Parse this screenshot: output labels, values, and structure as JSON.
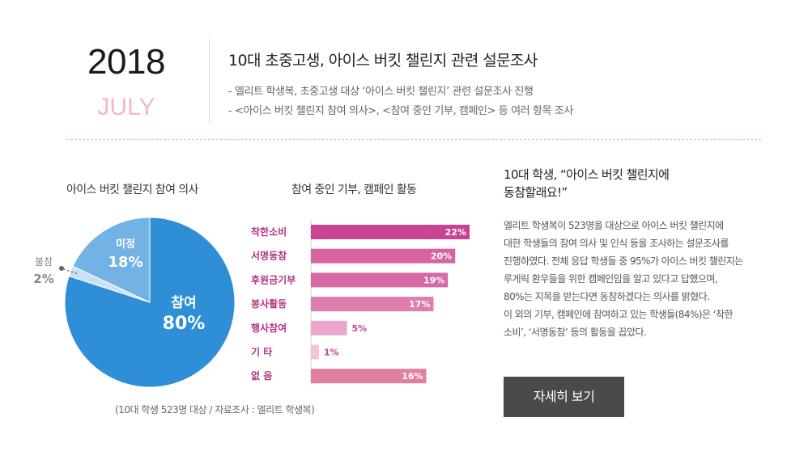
{
  "header": {
    "year": "2018",
    "month": "JULY",
    "title": "10대 초중고생, 아이스 버킷 챌린지 관련 설문조사",
    "descriptions": [
      "- 엘리트 학생복, 초중고생 대상 ‘아이스 버킷 챌린지’ 관련 설문조사 진행",
      "- <아이스 버킷 챌린지 참여 의사>, <참여 중인 기부, 캠페인> 등 여러 항목 조사"
    ]
  },
  "chart_data": [
    {
      "type": "pie",
      "title": "아이스 버킷 챌린지 참여 의사",
      "slices": [
        {
          "label": "참여",
          "value": 80,
          "display": "80%",
          "color": "#2f8fd6"
        },
        {
          "label": "불참",
          "value": 2,
          "display": "2%",
          "color": "#c9e1f5"
        },
        {
          "label": "미정",
          "value": 18,
          "display": "18%",
          "color": "#72b2e4"
        }
      ]
    },
    {
      "type": "bar",
      "orientation": "horizontal",
      "title": "참여 중인 기부, 캠페인 활동",
      "categories": [
        "착한소비",
        "서명동참",
        "후원금기부",
        "봉사활동",
        "행사참여",
        "기      타",
        "없      음"
      ],
      "values": [
        22,
        20,
        19,
        17,
        5,
        1,
        16
      ],
      "value_labels": [
        "22%",
        "20%",
        "19%",
        "17%",
        "5%",
        "1%",
        "16%"
      ],
      "colors": [
        "#c94392",
        "#d7649f",
        "#d66aa5",
        "#dd7eaf",
        "#eaa6cb",
        "#f2c4dc",
        "#e07f9e"
      ],
      "label_colors": [
        "#b3337f",
        "#b3337f",
        "#b3337f",
        "#b3337f",
        "#b3337f",
        "#b3337f",
        "#b3337f"
      ]
    }
  ],
  "source": "(10대 학생 523명 대상 / 자료조사 : 엘리트 학생복)",
  "side": {
    "headline_line1": "10대 학생, “아이스 버킷 챌린지에",
    "headline_line2": "동참할래요!”",
    "body": [
      "엘리트 학생복이 523명을 대상으로 아이스 버킷 챌린지에",
      "대한 학생들의 참여 의사 및 인식 등을 조사하는 설문조사를",
      "진행하였다. 전체 응답 학생들 중 95%가 아이스 버킷 챌린지는",
      "루게릭 환우들을 위한 캠페인임을 알고 있다고 답했으며,",
      "80%는 지목을 받는다면 동참하겠다는 의사를 밝혔다.",
      "이 외의 기부, 캠페인에 참여하고 있는 학생들(84%)은 ‘착한",
      "소비’, ‘서명동참’ 등의 활동을 꼽았다."
    ],
    "button_label": "자세히 보기"
  }
}
